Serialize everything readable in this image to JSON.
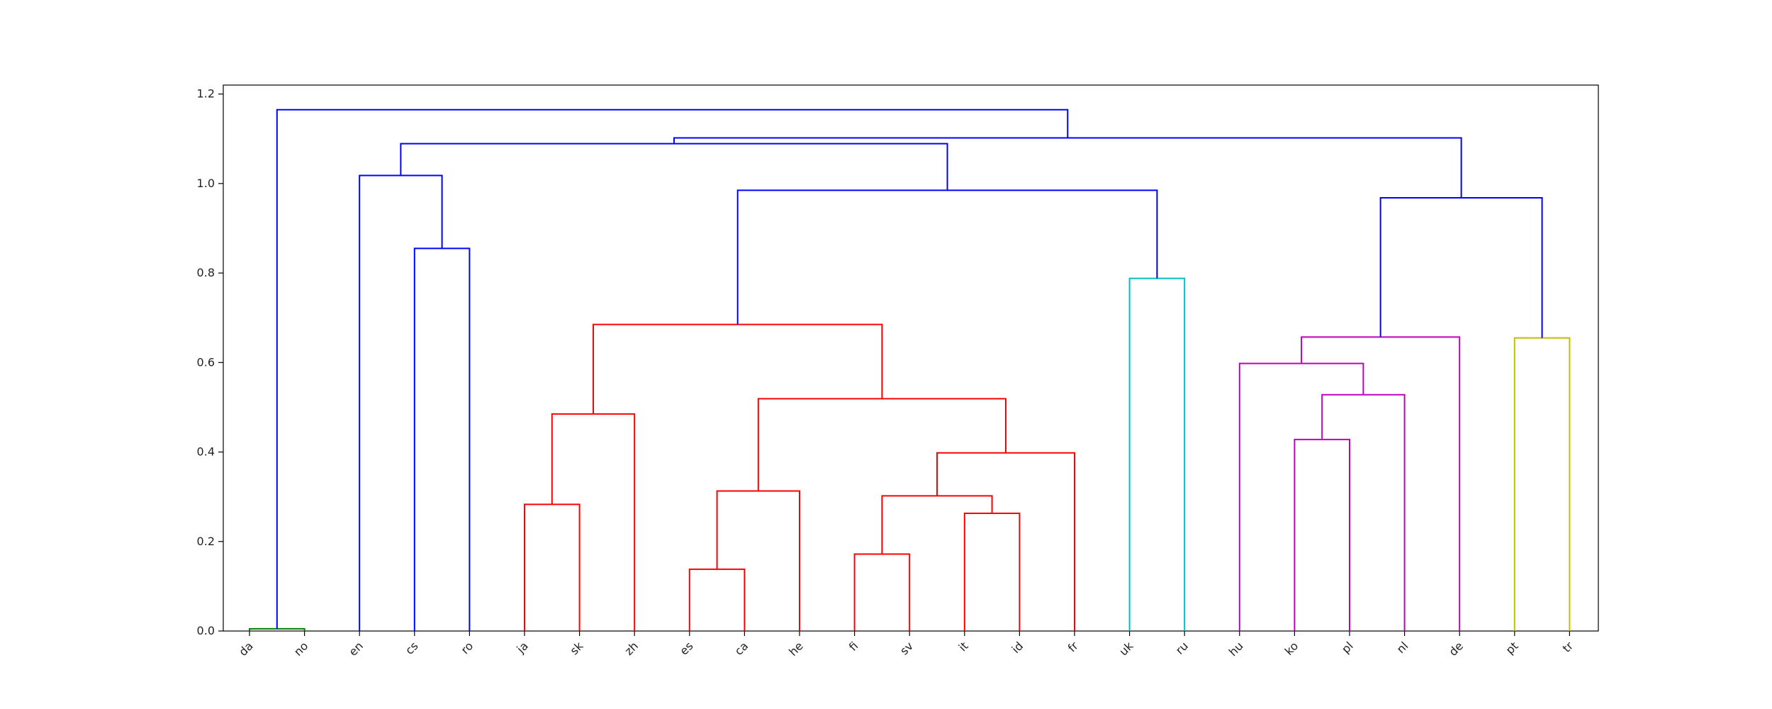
{
  "chart_data": {
    "type": "dendrogram",
    "title": "",
    "xlabel": "",
    "ylabel": "",
    "ylim": [
      0,
      1.22
    ],
    "yticks": [
      0.0,
      0.2,
      0.4,
      0.6,
      0.8,
      1.0,
      1.2
    ],
    "ytick_labels": [
      "0.0",
      "0.2",
      "0.4",
      "0.6",
      "0.8",
      "1.0",
      "1.2"
    ],
    "grid": false,
    "leaves": [
      "da",
      "no",
      "en",
      "cs",
      "ro",
      "ja",
      "sk",
      "zh",
      "es",
      "ca",
      "he",
      "fi",
      "sv",
      "it",
      "id",
      "fr",
      "uk",
      "ru",
      "hu",
      "ko",
      "pl",
      "nl",
      "de",
      "pt",
      "tr"
    ],
    "colors": {
      "green": "#008000",
      "blue": "#0000ff",
      "red": "#ff0000",
      "cyan": "#00bfbf",
      "magenta": "#bf00bf",
      "olive": "#bfbf00"
    },
    "links": [
      {
        "id": "L1",
        "left": "da",
        "right": "no",
        "height": 0.005,
        "color": "green"
      },
      {
        "id": "L2",
        "left": "cs",
        "right": "ro",
        "height": 0.855,
        "color": "blue"
      },
      {
        "id": "L3",
        "left": "en",
        "right": "L2",
        "height": 1.018,
        "color": "blue"
      },
      {
        "id": "L4",
        "left": "ja",
        "right": "sk",
        "height": 0.283,
        "color": "red"
      },
      {
        "id": "L5",
        "left": "L4",
        "right": "zh",
        "height": 0.485,
        "color": "red"
      },
      {
        "id": "L6",
        "left": "es",
        "right": "ca",
        "height": 0.138,
        "color": "red"
      },
      {
        "id": "L7",
        "left": "L6",
        "right": "he",
        "height": 0.313,
        "color": "red"
      },
      {
        "id": "L8",
        "left": "fi",
        "right": "sv",
        "height": 0.172,
        "color": "red"
      },
      {
        "id": "L9",
        "left": "it",
        "right": "id",
        "height": 0.263,
        "color": "red"
      },
      {
        "id": "L10",
        "left": "L8",
        "right": "L9",
        "height": 0.302,
        "color": "red"
      },
      {
        "id": "L11",
        "left": "L10",
        "right": "fr",
        "height": 0.398,
        "color": "red"
      },
      {
        "id": "L12",
        "left": "L7",
        "right": "L11",
        "height": 0.519,
        "color": "red"
      },
      {
        "id": "L13",
        "left": "L5",
        "right": "L12",
        "height": 0.685,
        "color": "red"
      },
      {
        "id": "L14",
        "left": "uk",
        "right": "ru",
        "height": 0.788,
        "color": "cyan"
      },
      {
        "id": "L15",
        "left": "L13",
        "right": "L14",
        "height": 0.985,
        "color": "blue"
      },
      {
        "id": "L16",
        "left": "L3",
        "right": "L15",
        "height": 1.089,
        "color": "blue"
      },
      {
        "id": "L17",
        "left": "ko",
        "right": "pl",
        "height": 0.428,
        "color": "magenta"
      },
      {
        "id": "L18",
        "left": "L17",
        "right": "nl",
        "height": 0.528,
        "color": "magenta"
      },
      {
        "id": "L19",
        "left": "hu",
        "right": "L18",
        "height": 0.598,
        "color": "magenta"
      },
      {
        "id": "L20",
        "left": "L19",
        "right": "de",
        "height": 0.657,
        "color": "magenta"
      },
      {
        "id": "L21",
        "left": "pt",
        "right": "tr",
        "height": 0.655,
        "color": "olive"
      },
      {
        "id": "L22",
        "left": "L20",
        "right": "L21",
        "height": 0.968,
        "color": "blue"
      },
      {
        "id": "L23",
        "left": "L16",
        "right": "L22",
        "height": 1.102,
        "color": "blue"
      },
      {
        "id": "L24",
        "left": "L1",
        "right": "L23",
        "height": 1.165,
        "color": "blue"
      }
    ]
  }
}
